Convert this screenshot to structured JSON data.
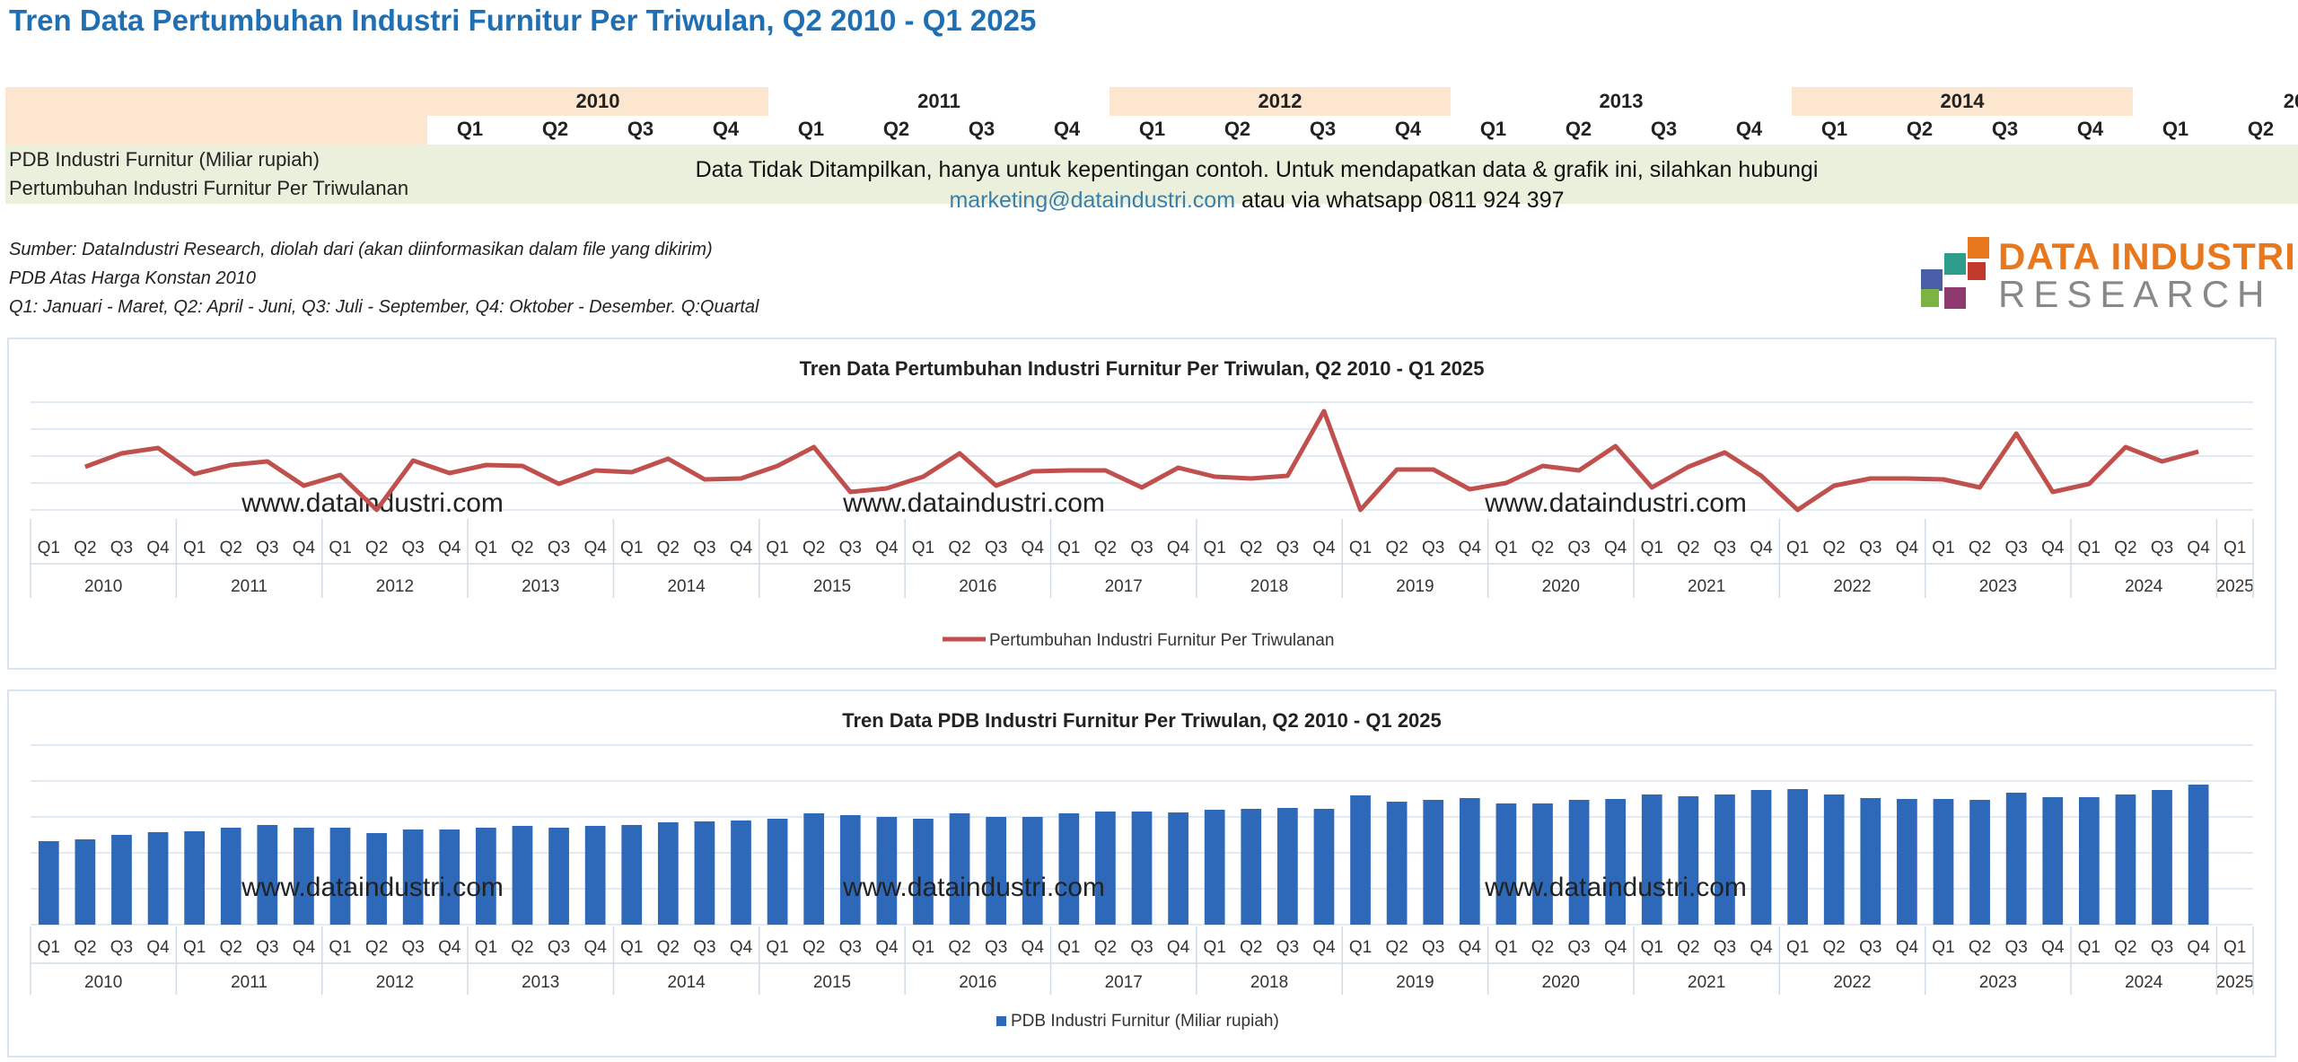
{
  "page_title": "Tren Data Pertumbuhan Industri Furnitur Per Triwulan, Q2 2010 - Q1 2025",
  "table": {
    "years": [
      "2010",
      "2011",
      "2012",
      "2013",
      "2014",
      "20"
    ],
    "quarters": [
      "Q1",
      "Q2",
      "Q3",
      "Q4"
    ],
    "row_labels": [
      "PDB Industri Furnitur (Miliar rupiah)",
      "Pertumbuhan Industri Furnitur Per Triwulanan"
    ]
  },
  "notice": {
    "line1": "Data Tidak Ditampilkan, hanya untuk kepentingan contoh. Untuk mendapatkan data & grafik  ini, silahkan hubungi",
    "email": "marketing@dataindustri.com",
    "line2_rest": " atau via whatsapp 0811 924 397"
  },
  "notes": [
    "Sumber: DataIndustri Research, diolah dari (akan diinformasikan dalam file yang dikirim)",
    "PDB Atas Harga Konstan 2010",
    "Q1: Januari - Maret, Q2: April - Juni, Q3: Juli - September, Q4: Oktober - Desember. Q:Quartal"
  ],
  "logo": {
    "line1": "DATA INDUSTRI",
    "line2": "RESEARCH",
    "colors": [
      "#e8781e",
      "#2f9c8c",
      "#4a5fa8",
      "#8e3a6e",
      "#7cb342",
      "#c0392b"
    ]
  },
  "watermark": "www.dataindustri.com",
  "colors": {
    "title": "#1f6fb5",
    "line": "#c0504d",
    "bar": "#2e68b8",
    "header_band": "#fde6cf",
    "row_band": "#eaf0dc"
  },
  "chart_data": [
    {
      "type": "line",
      "title": "Tren Data Pertumbuhan Industri Furnitur Per Triwulan, Q2 2010 - Q1 2025",
      "legend_position": "bottom",
      "grid": true,
      "x_years": [
        "2010",
        "2011",
        "2012",
        "2013",
        "2014",
        "2015",
        "2016",
        "2017",
        "2018",
        "2019",
        "2020",
        "2021",
        "2022",
        "2023",
        "2024",
        "2025"
      ],
      "x_quarters": [
        "Q1",
        "Q2",
        "Q3",
        "Q4"
      ],
      "ylim": [
        -5,
        8
      ],
      "series": [
        {
          "name": "Pertumbuhan Industri Furnitur Per Triwulanan",
          "start_index": 1,
          "values": [
            0.8,
            2.3,
            2.9,
            0.0,
            1.0,
            1.4,
            -1.3,
            -0.1,
            -4.0,
            1.5,
            0.1,
            1.0,
            0.9,
            -1.1,
            0.4,
            0.2,
            1.7,
            -0.6,
            -0.5,
            0.9,
            3.0,
            -2.0,
            -1.6,
            -0.3,
            2.3,
            -1.3,
            0.3,
            0.4,
            0.4,
            -1.5,
            0.7,
            -0.3,
            -0.5,
            -0.2,
            7.0,
            -4.0,
            0.5,
            0.5,
            -1.7,
            -1.0,
            0.9,
            0.4,
            3.1,
            -1.5,
            0.8,
            2.4,
            -0.2,
            -4.0,
            -1.3,
            -0.5,
            -0.5,
            -0.6,
            -1.5,
            4.5,
            -2.0,
            -1.1,
            3.0,
            1.4,
            2.5
          ]
        }
      ]
    },
    {
      "type": "bar",
      "title": "Tren Data PDB Industri Furnitur Per Triwulan, Q2 2010 - Q1 2025",
      "legend_position": "bottom",
      "grid": true,
      "x_years": [
        "2010",
        "2011",
        "2012",
        "2013",
        "2014",
        "2015",
        "2016",
        "2017",
        "2018",
        "2019",
        "2020",
        "2021",
        "2022",
        "2023",
        "2024",
        "2025"
      ],
      "x_quarters": [
        "Q1",
        "Q2",
        "Q3",
        "Q4"
      ],
      "ylim": [
        0,
        100
      ],
      "series": [
        {
          "name": "PDB Industri Furnitur (Miliar rupiah)",
          "start_index": 0,
          "values": [
            46.5,
            47.5,
            50.0,
            51.5,
            52.0,
            54.0,
            55.5,
            54.0,
            54.0,
            51.0,
            53.0,
            53.0,
            54.0,
            55.0,
            54.0,
            55.0,
            55.5,
            57.0,
            57.5,
            58.0,
            59.0,
            62.0,
            61.0,
            60.0,
            59.0,
            62.0,
            60.0,
            60.0,
            62.0,
            63.0,
            63.0,
            62.5,
            64.0,
            64.5,
            65.0,
            64.5,
            72.0,
            68.5,
            69.5,
            70.5,
            67.5,
            67.5,
            69.5,
            70.0,
            72.5,
            71.5,
            72.5,
            75.0,
            75.5,
            72.5,
            70.5,
            70.0,
            70.0,
            69.5,
            73.5,
            71.0,
            71.0,
            72.5,
            75.0,
            78.0
          ]
        }
      ]
    }
  ]
}
